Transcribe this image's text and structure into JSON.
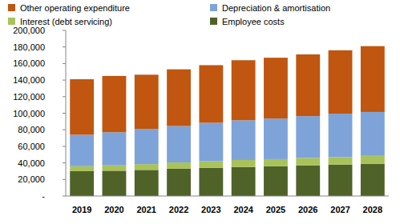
{
  "chart_data": {
    "type": "bar",
    "stacked": true,
    "grid": false,
    "legend": "top",
    "categories": [
      "2019",
      "2020",
      "2021",
      "2022",
      "2023",
      "2024",
      "2025",
      "2026",
      "2027",
      "2028"
    ],
    "series": [
      {
        "name": "Employee costs",
        "color": "#4f6228",
        "values": [
          30000,
          30500,
          31500,
          33000,
          34000,
          35000,
          36000,
          37000,
          38000,
          39000
        ]
      },
      {
        "name": "Interest (debt servicing)",
        "color": "#a9c25a",
        "values": [
          6000,
          6500,
          7000,
          7500,
          8000,
          8500,
          8500,
          9000,
          9000,
          9500
        ]
      },
      {
        "name": "Depreciation & amortisation",
        "color": "#7ea3d8",
        "values": [
          38000,
          40000,
          42500,
          44000,
          46500,
          48000,
          49000,
          50500,
          52500,
          53000
        ]
      },
      {
        "name": "Other operating expenditure",
        "color": "#c0560f",
        "values": [
          67000,
          68000,
          65500,
          68500,
          69500,
          72500,
          73500,
          74500,
          76500,
          79500
        ]
      }
    ],
    "ylim": [
      0,
      200000
    ],
    "yticks": [
      {
        "value": 0,
        "label": "-"
      },
      {
        "value": 20000,
        "label": "20,000"
      },
      {
        "value": 40000,
        "label": "40,000"
      },
      {
        "value": 60000,
        "label": "60,000"
      },
      {
        "value": 80000,
        "label": "80,000"
      },
      {
        "value": 100000,
        "label": "100,000"
      },
      {
        "value": 120000,
        "label": "120,000"
      },
      {
        "value": 140000,
        "label": "140,000"
      },
      {
        "value": 160000,
        "label": "160,000"
      },
      {
        "value": 180000,
        "label": "180,000"
      },
      {
        "value": 200000,
        "label": "200,000"
      }
    ]
  }
}
